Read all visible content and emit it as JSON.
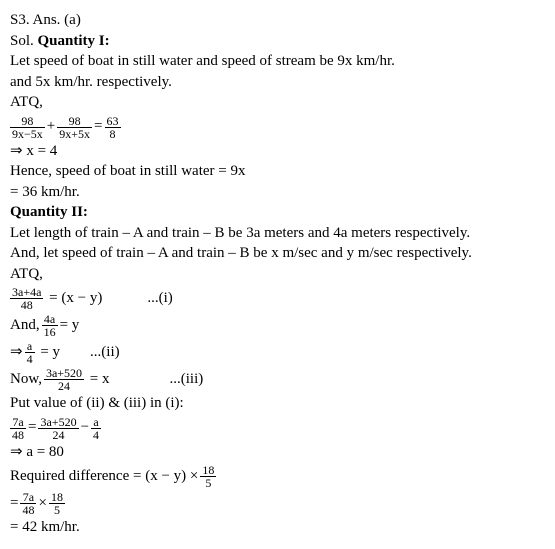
{
  "s3": {
    "header": "S3. Ans. (a)",
    "sol_prefix": "Sol. ",
    "q1_label": "Quantity I:",
    "q1_line1": "Let speed of boat in still water and speed of stream be 9x km/hr.",
    "q1_line2": "and 5x km/hr. respectively.",
    "atq": "ATQ,",
    "eq1": {
      "f1_num": "98",
      "f1_den": "9x−5x",
      "plus": " + ",
      "f2_num": "98",
      "f2_den": "9x+5x",
      "eq": " = ",
      "f3_num": "63",
      "f3_den": "8"
    },
    "q1_res1": "⇒ x = 4",
    "q1_res2": "Hence, speed of boat in still water = 9x",
    "q1_res3": "= 36 km/hr.",
    "q2_label": "Quantity II:",
    "q2_line1": "Let length of train – A and train – B be 3a meters and 4a meters respectively.",
    "q2_line2": "And, let speed of train – A and train – B be x m/sec and y m/sec respectively.",
    "eq2": {
      "f1_num": "3a+4a",
      "f1_den": "48",
      "rest": " = (x − y)            ...(i)"
    },
    "and_prefix": "And, ",
    "eq3": {
      "f1_num": "4a",
      "f1_den": "16",
      "rest": " = y"
    },
    "eq4": {
      "arrow": "⇒ ",
      "f1_num": "a",
      "f1_den": "4",
      "rest": " = y        ...(ii)"
    },
    "now_prefix": "Now, ",
    "eq5": {
      "f1_num": "3a+520",
      "f1_den": "24",
      "rest": " = x                ...(iii)"
    },
    "put_line": "Put value of (ii) & (iii) in (i):",
    "eq6": {
      "f1_num": "7a",
      "f1_den": "48",
      "eq1": " = ",
      "f2_num": "3a+520",
      "f2_den": "24",
      "minus": " − ",
      "f3_num": "a",
      "f3_den": "4"
    },
    "res_a": "⇒ a = 80",
    "req_prefix": "Required difference = (x − y) × ",
    "eq7": {
      "f1_num": "18",
      "f1_den": "5"
    },
    "eq8": {
      "prefix": "= ",
      "f1_num": "7a",
      "f1_den": "48",
      "times": " × ",
      "f2_num": "18",
      "f2_den": "5"
    },
    "final": "= 42 km/hr."
  }
}
